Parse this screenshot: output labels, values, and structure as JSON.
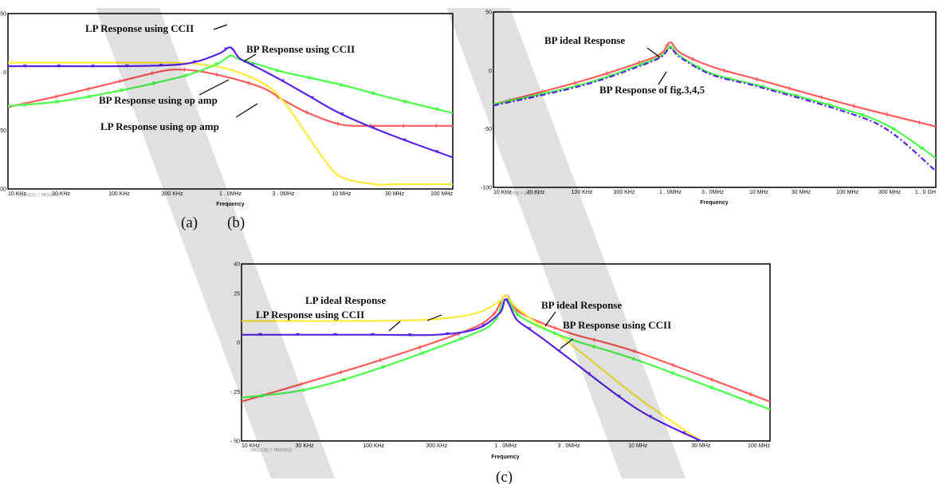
{
  "captions": {
    "a": "(a)",
    "b": "(b)",
    "c": "(c)"
  },
  "chart_data": [
    {
      "id": "a",
      "type": "line",
      "xscale": "log",
      "xlim": [
        10000,
        100000000
      ],
      "ylim": [
        -100,
        50
      ],
      "xlabel": "Frequency",
      "ylabel": "",
      "xticks": [
        {
          "v": 10000,
          "t": "10 KHz"
        },
        {
          "v": 30000,
          "t": "30 KHz"
        },
        {
          "v": 100000,
          "t": "100 KHz"
        },
        {
          "v": 300000,
          "t": "300 KHz"
        },
        {
          "v": 1000000,
          "t": "1 . 0MHz"
        },
        {
          "v": 3000000,
          "t": "3 . 0MHz"
        },
        {
          "v": 10000000,
          "t": "10 MHz"
        },
        {
          "v": 30000000,
          "t": "30 MHz"
        },
        {
          "v": 100000000,
          "t": "100 MHz"
        }
      ],
      "yticks": [
        {
          "v": 50,
          "t": "50"
        },
        {
          "v": 0,
          "t": "0"
        },
        {
          "v": -50,
          "t": "-50"
        },
        {
          "v": -100,
          "t": "-100"
        }
      ],
      "legend_text": "○ DB(V(13)) ▽ DB(V(14))",
      "series": [
        {
          "color": "#ff5c5c",
          "marker": "+",
          "x": [
            10000,
            30000,
            100000,
            200000,
            300000,
            500000,
            1000000,
            2000000,
            3000000,
            5000000,
            10000000,
            20000000,
            30000000,
            100000000
          ],
          "y": [
            -30,
            -20,
            -8,
            -1,
            2,
            1,
            -5,
            -14,
            -24,
            -35,
            -45,
            -46,
            -46,
            -46
          ]
        },
        {
          "color": "#ffea3c",
          "marker": "none",
          "x": [
            10000,
            100000,
            300000,
            500000,
            1000000,
            2000000,
            3000000,
            5000000,
            7000000,
            10000000,
            20000000,
            30000000,
            100000000
          ],
          "y": [
            8,
            8,
            8,
            7,
            2,
            -10,
            -25,
            -55,
            -75,
            -90,
            -96,
            -96,
            -96
          ]
        },
        {
          "color": "#4dff4d",
          "marker": "x",
          "x": [
            10000,
            30000,
            100000,
            300000,
            500000,
            800000,
            1000000,
            1200000,
            2000000,
            3000000,
            10000000,
            30000000,
            100000000
          ],
          "y": [
            -29,
            -25,
            -16,
            -6,
            0,
            8,
            14,
            11,
            5,
            0,
            -11,
            -23,
            -35
          ]
        },
        {
          "color": "#5a23e6",
          "marker": "v",
          "x": [
            10000,
            30000,
            100000,
            300000,
            500000,
            800000,
            1000000,
            1200000,
            1500000,
            2000000,
            3000000,
            5000000,
            10000000,
            30000000,
            100000000
          ],
          "y": [
            5,
            5,
            5,
            6,
            9,
            16,
            21,
            12,
            7,
            1,
            -8,
            -20,
            -36,
            -55,
            -73
          ]
        }
      ],
      "annotations": [
        {
          "text": "LP Response using CCII"
        },
        {
          "text": "BP Response using CCII"
        },
        {
          "text": "BP Response using op amp"
        },
        {
          "text": "LP Response using op amp"
        }
      ]
    },
    {
      "id": "b",
      "type": "line",
      "xscale": "log",
      "xlim": [
        10000,
        1000000000
      ],
      "ylim": [
        -100,
        50
      ],
      "xlabel": "Frequency",
      "ylabel": "",
      "xticks": [
        {
          "v": 10000,
          "t": "10 KHz"
        },
        {
          "v": 30000,
          "t": "30 KHz"
        },
        {
          "v": 100000,
          "t": "100 KHz"
        },
        {
          "v": 300000,
          "t": "300 KHz"
        },
        {
          "v": 1000000,
          "t": "1 . 0MHz"
        },
        {
          "v": 3000000,
          "t": "3 . 0MHz"
        },
        {
          "v": 10000000,
          "t": "10 MHz"
        },
        {
          "v": 30000000,
          "t": "30 MHz"
        },
        {
          "v": 100000000,
          "t": "100 MHz"
        },
        {
          "v": 300000000,
          "t": "300 MHz"
        },
        {
          "v": 1000000000,
          "t": "1 . 0 GH"
        }
      ],
      "yticks": [
        {
          "v": 50,
          "t": "50"
        },
        {
          "v": 0,
          "t": "0"
        },
        {
          "v": -50,
          "t": "-50"
        },
        {
          "v": -100,
          "t": "-100"
        }
      ],
      "legend_text": "○ DB(V(9)) ▽ DB(V(7))",
      "series": [
        {
          "color": "#ff5c5c",
          "marker": "+",
          "x": [
            10000,
            100000,
            500000,
            800000,
            1000000,
            1300000,
            3000000,
            10000000,
            100000000,
            1000000000
          ],
          "y": [
            -29,
            -9,
            8,
            15,
            24,
            15,
            3,
            -8,
            -29,
            -48
          ]
        },
        {
          "color": "#4dff4d",
          "marker": "x",
          "x": [
            10000,
            100000,
            500000,
            800000,
            1000000,
            1300000,
            3000000,
            10000000,
            100000000,
            300000000,
            1000000000
          ],
          "y": [
            -29,
            -12,
            6,
            13,
            20,
            12,
            -3,
            -13,
            -34,
            -48,
            -75
          ]
        },
        {
          "color": "#5a23e6",
          "marker": "dashdot",
          "x": [
            10000,
            100000,
            500000,
            800000,
            1000000,
            1300000,
            3000000,
            10000000,
            100000000,
            300000000,
            1000000000
          ],
          "y": [
            -30,
            -13,
            5,
            12,
            19,
            11,
            -4,
            -14,
            -36,
            -52,
            -86
          ]
        }
      ],
      "annotations": [
        {
          "text": "BP ideal Response"
        },
        {
          "text": "BP Response of fig.3,4,5"
        }
      ]
    },
    {
      "id": "c",
      "type": "line",
      "xscale": "log",
      "xlim": [
        10000,
        100000000
      ],
      "ylim": [
        -50,
        40
      ],
      "xlabel": "Frequency",
      "ylabel": "",
      "xticks": [
        {
          "v": 10000,
          "t": "10 KHz"
        },
        {
          "v": 30000,
          "t": "30 KHz"
        },
        {
          "v": 100000,
          "t": "100 KHz"
        },
        {
          "v": 300000,
          "t": "300 KHz"
        },
        {
          "v": 1000000,
          "t": "1 . 0MHz"
        },
        {
          "v": 3000000,
          "t": "3 . 0MHz"
        },
        {
          "v": 10000000,
          "t": "10 MHz"
        },
        {
          "v": 30000000,
          "t": "30 MHz"
        },
        {
          "v": 100000000,
          "t": "100 MHz"
        }
      ],
      "yticks": [
        {
          "v": 40,
          "t": "40"
        },
        {
          "v": 25,
          "t": "25"
        },
        {
          "v": 0,
          "t": "0"
        },
        {
          "v": -25,
          "t": "- 25"
        },
        {
          "v": -50,
          "t": "- 50"
        }
      ],
      "legend_text": "○ DB(V(13)) ▽ DB(V(14))",
      "series": [
        {
          "color": "#ff5c5c",
          "marker": "+",
          "x": [
            10000,
            100000,
            500000,
            800000,
            1000000,
            1300000,
            3000000,
            10000000,
            100000000
          ],
          "y": [
            -30,
            -10,
            6,
            14,
            24,
            15,
            5,
            -5,
            -30
          ]
        },
        {
          "color": "#ffea3c",
          "marker": "none",
          "x": [
            10000,
            100000,
            300000,
            600000,
            900000,
            1000000,
            1200000,
            2000000,
            3000000,
            10000000,
            30000000
          ],
          "y": [
            11,
            11,
            12,
            15,
            21,
            24,
            18,
            7,
            0,
            -28,
            -50
          ]
        },
        {
          "color": "#4dff4d",
          "marker": "x",
          "x": [
            10000,
            30000,
            100000,
            500000,
            800000,
            1000000,
            1300000,
            3000000,
            10000000,
            100000000
          ],
          "y": [
            -28,
            -24,
            -14,
            3,
            10,
            22,
            13,
            2,
            -9,
            -34
          ]
        },
        {
          "color": "#5a23e6",
          "marker": "v",
          "x": [
            10000,
            100000,
            300000,
            600000,
            900000,
            1000000,
            1200000,
            1500000,
            2000000,
            3000000,
            10000000,
            30000000
          ],
          "y": [
            4,
            4,
            4,
            7,
            15,
            22,
            12,
            7,
            1,
            -8,
            -34,
            -50
          ]
        }
      ],
      "annotations": [
        {
          "text": "LP ideal Response"
        },
        {
          "text": "LP Response using CCII"
        },
        {
          "text": "BP ideal Response"
        },
        {
          "text": "BP Response using CCII"
        }
      ]
    }
  ]
}
